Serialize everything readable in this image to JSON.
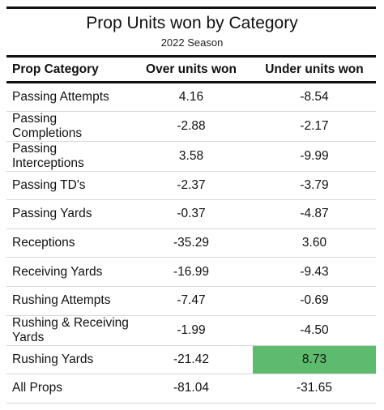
{
  "title": "Prop Units won by Category",
  "subtitle": "2022 Season",
  "colors": {
    "highlight": "#5dbb6e",
    "rule": "#111111",
    "divider": "#d8d8d8"
  },
  "chart_data": {
    "type": "table",
    "title": "Prop Units won by Category",
    "subtitle": "2022 Season",
    "columns": [
      "Prop Category",
      "Over units won",
      "Under units won"
    ],
    "rows": [
      {
        "category": "Passing Attempts",
        "over": "4.16",
        "under": "-8.54"
      },
      {
        "category": "Passing Completions",
        "over": "-2.88",
        "under": "-2.17"
      },
      {
        "category": "Passing Interceptions",
        "over": "3.58",
        "under": "-9.99"
      },
      {
        "category": "Passing TD's",
        "over": "-2.37",
        "under": "-3.79"
      },
      {
        "category": "Passing Yards",
        "over": "-0.37",
        "under": "-4.87"
      },
      {
        "category": "Receptions",
        "over": "-35.29",
        "under": "3.60"
      },
      {
        "category": "Receiving Yards",
        "over": "-16.99",
        "under": "-9.43"
      },
      {
        "category": "Rushing Attempts",
        "over": "-7.47",
        "under": "-0.69"
      },
      {
        "category": "Rushing & Receiving Yards",
        "over": "-1.99",
        "under": "-4.50"
      },
      {
        "category": "Rushing Yards",
        "over": "-21.42",
        "under": "8.73",
        "highlight": "under"
      },
      {
        "category": "All Props",
        "over": "-81.04",
        "under": "-31.65"
      }
    ]
  }
}
